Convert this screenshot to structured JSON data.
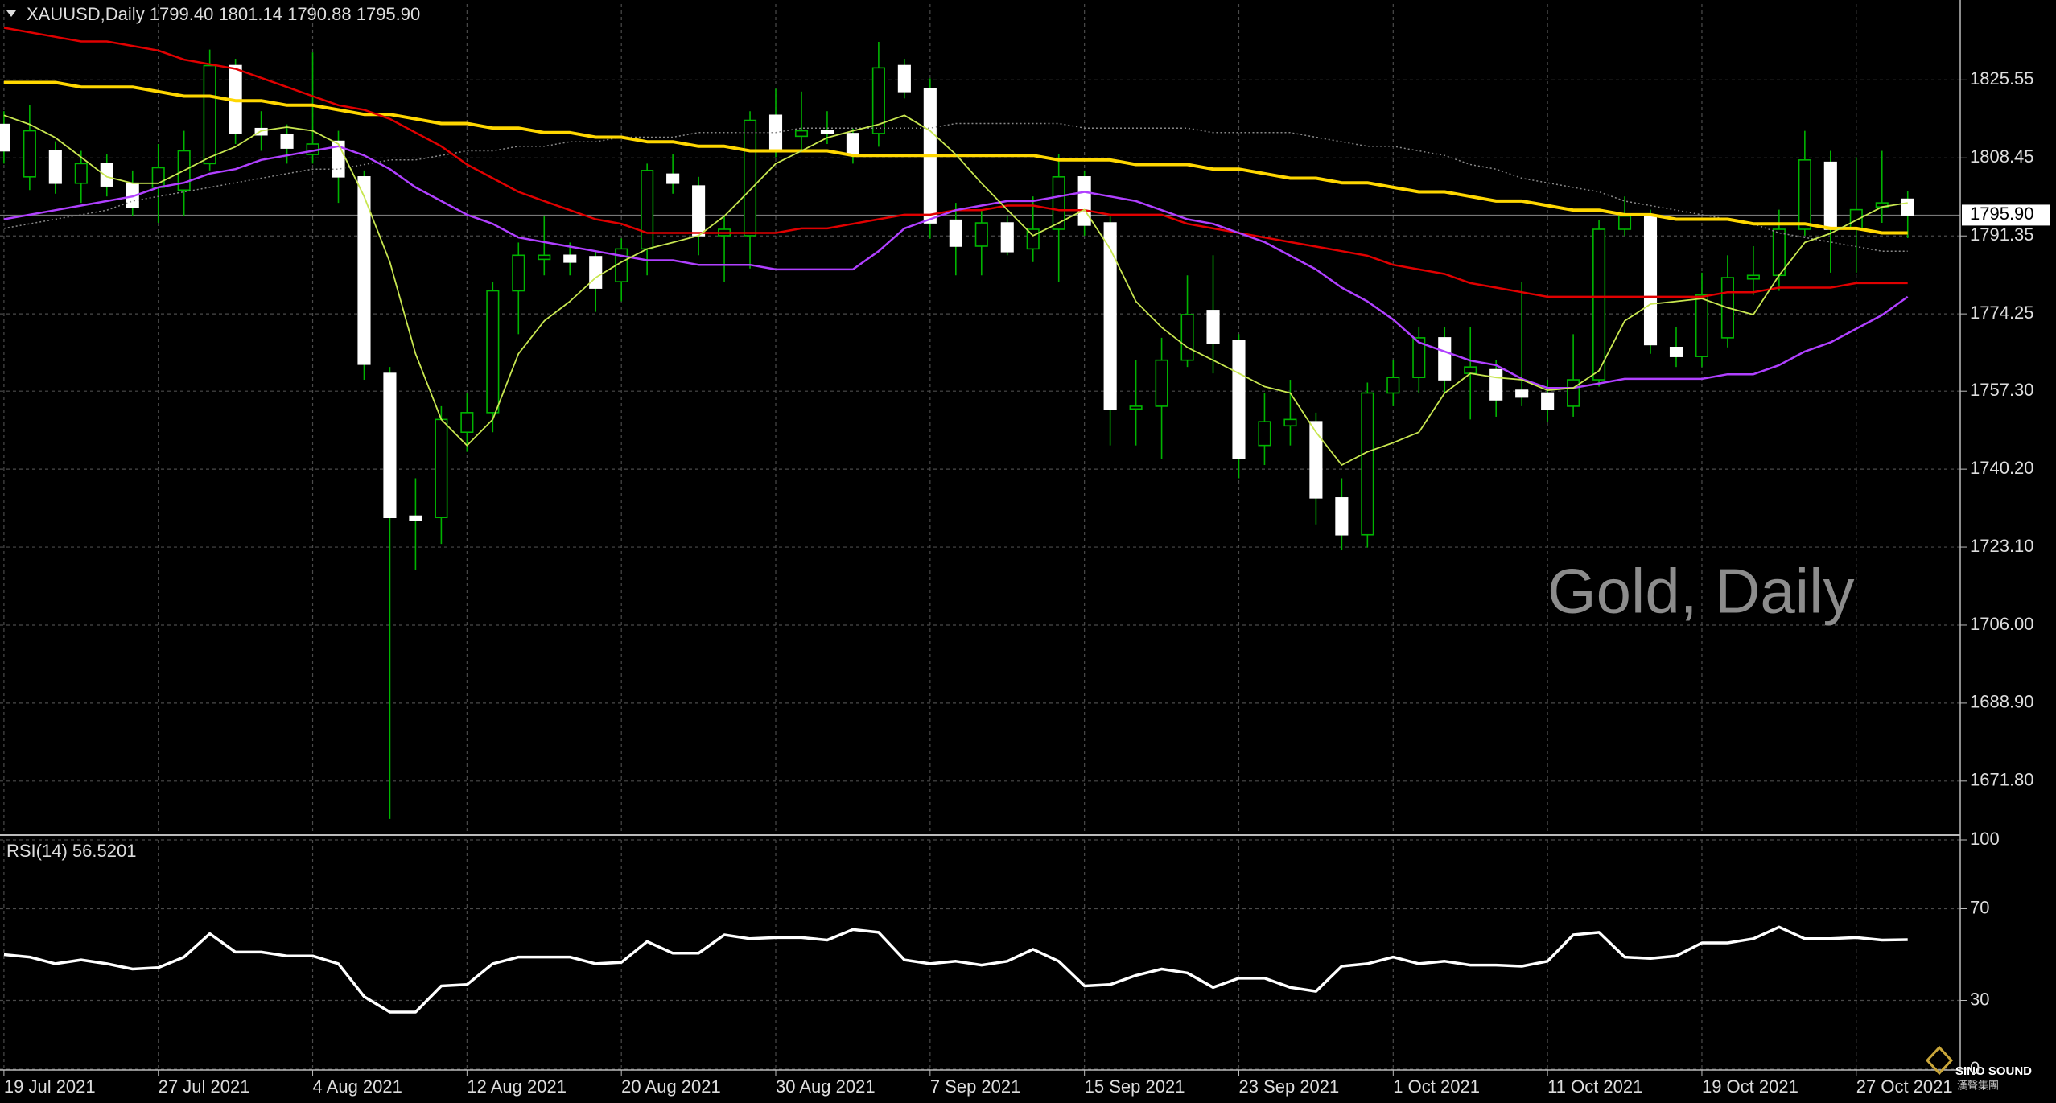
{
  "header": "XAUUSD,Daily  1799.40 1801.14 1790.88 1795.90",
  "watermark": "Gold, Daily",
  "logo": {
    "name": "SINO SOUND",
    "subtitle": "漢聲集團"
  },
  "chart_data": [
    {
      "type": "candlestick",
      "categories": [
        "19 Jul 2021",
        null,
        null,
        null,
        null,
        null,
        "27 Jul 2021",
        null,
        null,
        null,
        null,
        null,
        "4 Aug 2021",
        null,
        null,
        null,
        null,
        null,
        "12 Aug 2021",
        null,
        null,
        null,
        null,
        null,
        "20 Aug 2021",
        null,
        null,
        null,
        null,
        null,
        "30 Aug 2021",
        null,
        null,
        null,
        null,
        null,
        "7 Sep 2021",
        null,
        null,
        null,
        null,
        null,
        "15 Sep 2021",
        null,
        null,
        null,
        null,
        null,
        "23 Sep 2021",
        null,
        null,
        null,
        null,
        null,
        "1 Oct 2021",
        null,
        null,
        null,
        null,
        null,
        "11 Oct 2021",
        null,
        null,
        null,
        null,
        null,
        "19 Oct 2021",
        null,
        null,
        null,
        null,
        null,
        "27 Oct 2021",
        null,
        null
      ],
      "open": [
        1815.8,
        1804.3,
        1810.0,
        1802.9,
        1807.2,
        1802.9,
        1802.0,
        1801.4,
        1807.2,
        1828.7,
        1814.9,
        1813.5,
        1809.2,
        1812.1,
        1804.3,
        1761.2,
        1729.9,
        1729.6,
        1748.3,
        1752.6,
        1779.3,
        1786.2,
        1787.1,
        1786.8,
        1781.3,
        1788.5,
        1804.9,
        1802.3,
        1791.4,
        1791.4,
        1817.8,
        1813.2,
        1814.4,
        1813.8,
        1813.8,
        1828.7,
        1823.6,
        1794.8,
        1789.1,
        1794.2,
        1788.5,
        1792.8,
        1804.3,
        1794.2,
        1753.4,
        1754.0,
        1764.1,
        1775.0,
        1768.4,
        1745.4,
        1749.7,
        1750.6,
        1733.9,
        1725.8,
        1756.9,
        1760.3,
        1769.0,
        1761.2,
        1762.0,
        1757.5,
        1756.9,
        1754.0,
        1759.8,
        1792.8,
        1795.7,
        1766.9,
        1764.9,
        1769.0,
        1781.9,
        1782.7,
        1792.8,
        1807.5,
        1792.8,
        1797.7,
        1799.4
      ],
      "high": [
        1818.7,
        1820.1,
        1812.1,
        1810.0,
        1809.2,
        1805.7,
        1811.5,
        1814.4,
        1832.2,
        1830.2,
        1818.7,
        1815.8,
        1831.6,
        1814.4,
        1805.7,
        1762.6,
        1738.2,
        1754.0,
        1756.9,
        1781.3,
        1789.9,
        1795.7,
        1789.9,
        1787.9,
        1790.8,
        1807.2,
        1809.2,
        1804.3,
        1795.7,
        1818.7,
        1823.6,
        1823.0,
        1818.7,
        1814.9,
        1833.9,
        1830.2,
        1825.9,
        1798.6,
        1797.1,
        1795.7,
        1800.0,
        1809.2,
        1805.7,
        1795.7,
        1764.1,
        1769.0,
        1782.7,
        1787.1,
        1769.8,
        1756.9,
        1759.8,
        1752.6,
        1738.2,
        1759.2,
        1764.1,
        1771.3,
        1771.3,
        1771.3,
        1764.1,
        1781.3,
        1759.8,
        1769.8,
        1794.8,
        1800.0,
        1797.1,
        1771.3,
        1783.3,
        1787.1,
        1789.1,
        1797.1,
        1814.4,
        1810.0,
        1808.6,
        1810.0,
        1801.14
      ],
      "low": [
        1807.2,
        1801.4,
        1800.6,
        1798.6,
        1800.0,
        1795.7,
        1794.2,
        1795.7,
        1805.7,
        1811.5,
        1810.0,
        1807.2,
        1807.2,
        1798.6,
        1759.8,
        1663.5,
        1718.1,
        1723.8,
        1744.0,
        1748.3,
        1769.8,
        1782.7,
        1782.7,
        1774.7,
        1777.0,
        1782.7,
        1800.6,
        1787.1,
        1781.3,
        1784.2,
        1808.6,
        1810.0,
        1811.5,
        1807.2,
        1810.9,
        1821.5,
        1790.8,
        1782.7,
        1782.7,
        1787.1,
        1785.6,
        1781.3,
        1791.4,
        1745.4,
        1745.4,
        1742.5,
        1762.6,
        1761.2,
        1738.2,
        1741.1,
        1745.4,
        1728.1,
        1722.4,
        1723.0,
        1754.0,
        1756.9,
        1756.9,
        1751.1,
        1751.7,
        1754.0,
        1750.6,
        1751.7,
        1758.3,
        1791.4,
        1765.5,
        1762.6,
        1762.6,
        1766.9,
        1778.4,
        1779.3,
        1791.4,
        1783.3,
        1783.3,
        1794.2,
        1790.88
      ],
      "close": [
        1810.0,
        1814.4,
        1802.9,
        1807.2,
        1802.3,
        1797.7,
        1806.3,
        1810.0,
        1828.7,
        1813.8,
        1813.5,
        1810.6,
        1811.5,
        1804.3,
        1763.2,
        1729.6,
        1729.0,
        1751.1,
        1752.6,
        1779.3,
        1787.1,
        1787.1,
        1785.6,
        1779.9,
        1788.5,
        1805.7,
        1802.9,
        1791.4,
        1792.8,
        1816.7,
        1810.0,
        1814.4,
        1813.8,
        1809.5,
        1828.2,
        1823.0,
        1794.2,
        1789.1,
        1794.2,
        1787.9,
        1792.8,
        1804.3,
        1793.7,
        1753.4,
        1754.0,
        1764.1,
        1774.1,
        1767.8,
        1742.5,
        1750.6,
        1751.1,
        1733.9,
        1725.8,
        1756.9,
        1760.3,
        1769.0,
        1759.8,
        1762.6,
        1755.4,
        1756.0,
        1753.4,
        1759.8,
        1792.8,
        1795.7,
        1767.5,
        1764.9,
        1778.4,
        1782.2,
        1782.7,
        1792.8,
        1808.0,
        1792.8,
        1797.1,
        1798.6,
        1795.9
      ],
      "up_color": "#000000",
      "down_color": "#ffffff",
      "wick_color": "#00b400",
      "series": [
        {
          "color": "#888888",
          "width": 1.5,
          "dash": true,
          "values": [
            1793,
            1794,
            1795,
            1796,
            1797,
            1799,
            1800,
            1801,
            1802,
            1803,
            1804,
            1805,
            1806,
            1806,
            1807,
            1808,
            1808,
            1809,
            1810,
            1810,
            1811,
            1811,
            1812,
            1812,
            1813,
            1813,
            1813,
            1814,
            1814,
            1814,
            1814,
            1815,
            1815,
            1815,
            1815,
            1815,
            1815,
            1816,
            1816,
            1816,
            1816,
            1816,
            1815,
            1815,
            1815,
            1815,
            1815,
            1814,
            1814,
            1814,
            1814,
            1813,
            1812,
            1811,
            1811,
            1810,
            1809,
            1807,
            1806,
            1804,
            1803,
            1802,
            1801,
            1799,
            1798,
            1797,
            1796,
            1795,
            1794,
            1792,
            1791,
            1790,
            1789,
            1788,
            1788
          ]
        },
        {
          "color": "#ffd700",
          "width": 4,
          "values": [
            1825,
            1825,
            1825,
            1824,
            1824,
            1824,
            1823,
            1822,
            1822,
            1821,
            1821,
            1820,
            1820,
            1819,
            1818,
            1818,
            1817,
            1816,
            1816,
            1815,
            1815,
            1814,
            1814,
            1813,
            1813,
            1812,
            1812,
            1811,
            1811,
            1810,
            1810,
            1810,
            1810,
            1809,
            1809,
            1809,
            1809,
            1809,
            1809,
            1809,
            1809,
            1808,
            1808,
            1808,
            1807,
            1807,
            1807,
            1806,
            1806,
            1805,
            1804,
            1804,
            1803,
            1803,
            1802,
            1801,
            1801,
            1800,
            1799,
            1799,
            1798,
            1797,
            1797,
            1796,
            1796,
            1795,
            1795,
            1795,
            1794,
            1794,
            1794,
            1793,
            1793,
            1792,
            1792
          ]
        },
        {
          "color": "#e00000",
          "width": 2.5,
          "values": [
            1837,
            1836,
            1835,
            1834,
            1834,
            1833,
            1832,
            1830,
            1829,
            1828,
            1826,
            1824,
            1822,
            1820,
            1819,
            1817,
            1814,
            1811,
            1807,
            1804,
            1801,
            1799,
            1797,
            1795,
            1794,
            1792,
            1792,
            1792,
            1792,
            1792,
            1792,
            1793,
            1793,
            1794,
            1795,
            1796,
            1796,
            1797,
            1797,
            1798,
            1798,
            1797,
            1797,
            1796,
            1796,
            1796,
            1794,
            1793,
            1792,
            1791,
            1790,
            1789,
            1788,
            1787,
            1785,
            1784,
            1783,
            1781,
            1780,
            1779,
            1778,
            1778,
            1778,
            1778,
            1778,
            1778,
            1778,
            1779,
            1779,
            1780,
            1780,
            1780,
            1781,
            1781,
            1781
          ]
        },
        {
          "color": "#b040ff",
          "width": 2.5,
          "values": [
            1795,
            1796,
            1797,
            1798,
            1799,
            1800,
            1802,
            1803,
            1805,
            1806,
            1808,
            1809,
            1810,
            1811,
            1809,
            1806,
            1802,
            1799,
            1796,
            1794,
            1791,
            1790,
            1789,
            1788,
            1787,
            1786,
            1786,
            1785,
            1785,
            1785,
            1784,
            1784,
            1784,
            1784,
            1788,
            1793,
            1795,
            1797,
            1798,
            1799,
            1799,
            1800,
            1801,
            1800,
            1799,
            1797,
            1795,
            1794,
            1792,
            1790,
            1787,
            1784,
            1780,
            1777,
            1773,
            1768,
            1766,
            1764,
            1763,
            1760,
            1758,
            1758,
            1759,
            1760,
            1760,
            1760,
            1760,
            1761,
            1761,
            1763,
            1766,
            1768,
            1771,
            1774,
            1778
          ]
        },
        {
          "color": "#c8e650",
          "width": 1.8,
          "values": [
            1817.8,
            1815.8,
            1812.9,
            1808.6,
            1804.3,
            1802.9,
            1802.9,
            1805.7,
            1808.6,
            1810.9,
            1814.4,
            1815.2,
            1814.4,
            1811.5,
            1800.0,
            1785.6,
            1765.5,
            1751.1,
            1745.4,
            1751.1,
            1765.5,
            1772.7,
            1777.0,
            1782.2,
            1785.6,
            1788.5,
            1789.9,
            1791.4,
            1795.7,
            1801.4,
            1807.2,
            1810.0,
            1812.9,
            1814.4,
            1815.8,
            1817.8,
            1814.4,
            1809.2,
            1802.9,
            1797.1,
            1791.4,
            1794.2,
            1797.1,
            1788.5,
            1777.0,
            1771.3,
            1766.9,
            1764.1,
            1761.2,
            1758.3,
            1756.9,
            1748.3,
            1741.1,
            1744.0,
            1746.0,
            1748.3,
            1756.9,
            1761.2,
            1760.3,
            1759.8,
            1757.5,
            1758.0,
            1761.8,
            1772.7,
            1776.4,
            1777.0,
            1777.6,
            1775.6,
            1774.1,
            1782.7,
            1789.9,
            1791.9,
            1794.8,
            1797.7,
            1798.6
          ]
        }
      ],
      "last_price": {
        "value": 1795.9,
        "label": "1795.90"
      },
      "ylim": [
        1660.3,
        1842.2
      ],
      "yticks": [
        {
          "value": 1671.8,
          "label": "1671.80"
        },
        {
          "value": 1688.9,
          "label": "1688.90"
        },
        {
          "value": 1706,
          "label": "1706.00"
        },
        {
          "value": 1723.1,
          "label": "1723.10"
        },
        {
          "value": 1740.2,
          "label": "1740.20"
        },
        {
          "value": 1757.3,
          "label": "1757.30"
        },
        1774.25,
        1791.35,
        1808.45,
        1825.55
      ],
      "grid": true
    },
    {
      "type": "line",
      "title": "RSI(14) 56.5201",
      "color": "#ffffff",
      "values": [
        50.0,
        48.9,
        46.0,
        47.7,
        46.0,
        43.7,
        44.3,
        48.9,
        59.1,
        51.1,
        51.1,
        49.4,
        49.4,
        46.0,
        31.7,
        24.9,
        24.9,
        36.3,
        36.9,
        46.0,
        48.9,
        48.9,
        48.9,
        46.0,
        46.6,
        55.7,
        50.6,
        50.6,
        58.6,
        56.9,
        57.4,
        57.4,
        56.3,
        60.9,
        59.7,
        47.7,
        46.0,
        47.1,
        45.4,
        47.1,
        52.3,
        47.1,
        36.3,
        36.9,
        40.9,
        43.7,
        42.0,
        35.7,
        39.7,
        39.7,
        35.7,
        34.0,
        44.9,
        46.0,
        48.9,
        46.0,
        47.1,
        45.4,
        45.4,
        44.9,
        47.1,
        58.6,
        59.7,
        48.9,
        48.3,
        49.4,
        55.1,
        55.1,
        56.9,
        62.0,
        56.9,
        56.9,
        57.4,
        56.3,
        56.5
      ],
      "ylim": [
        0,
        100
      ],
      "yticks": [
        0,
        30,
        70,
        100
      ]
    }
  ]
}
